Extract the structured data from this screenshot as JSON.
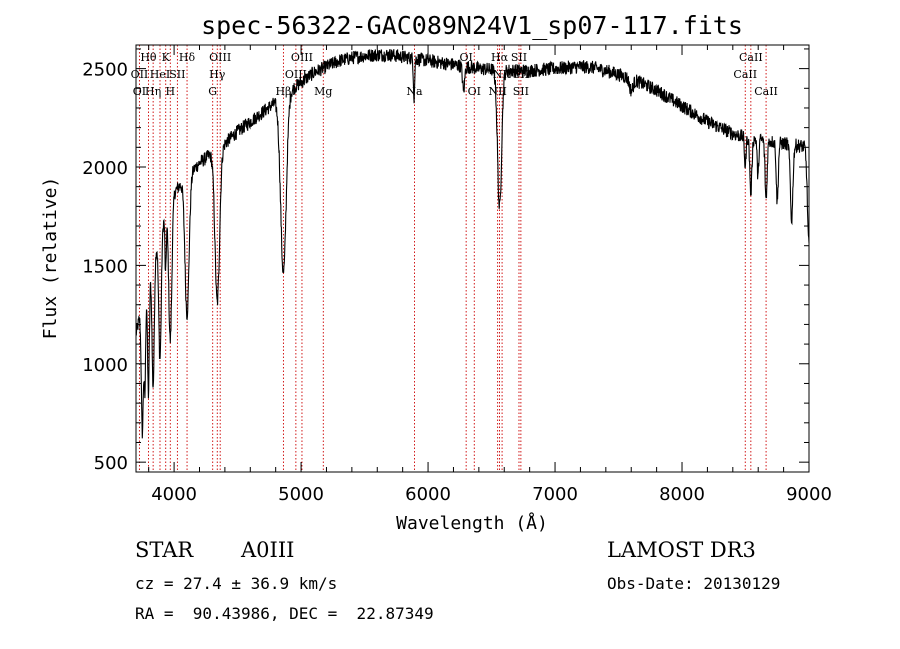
{
  "chart_data": {
    "type": "line",
    "title": "spec-56322-GAC089N24V1_sp07-117.fits",
    "xlabel": "Wavelength (Å)",
    "ylabel": "Flux (relative)",
    "xlim": [
      3700,
      9000
    ],
    "ylim": [
      450,
      2620
    ],
    "xticks": [
      4000,
      5000,
      6000,
      7000,
      8000,
      9000
    ],
    "yticks": [
      500,
      1000,
      1500,
      2000,
      2500
    ],
    "line_color": "#000000",
    "marker_color": "#cc0000",
    "continuum": [
      [
        3700,
        1150
      ],
      [
        3800,
        1450
      ],
      [
        3900,
        1700
      ],
      [
        4000,
        1870
      ],
      [
        4100,
        1950
      ],
      [
        4200,
        2020
      ],
      [
        4300,
        2070
      ],
      [
        4400,
        2120
      ],
      [
        4500,
        2180
      ],
      [
        4600,
        2230
      ],
      [
        4700,
        2280
      ],
      [
        4800,
        2330
      ],
      [
        4900,
        2380
      ],
      [
        5000,
        2430
      ],
      [
        5100,
        2480
      ],
      [
        5200,
        2510
      ],
      [
        5300,
        2540
      ],
      [
        5400,
        2555
      ],
      [
        5500,
        2565
      ],
      [
        5600,
        2570
      ],
      [
        5700,
        2570
      ],
      [
        5800,
        2560
      ],
      [
        5900,
        2550
      ],
      [
        6000,
        2540
      ],
      [
        6100,
        2530
      ],
      [
        6200,
        2520
      ],
      [
        6300,
        2510
      ],
      [
        6400,
        2500
      ],
      [
        6500,
        2495
      ],
      [
        6600,
        2490
      ],
      [
        6700,
        2490
      ],
      [
        6800,
        2490
      ],
      [
        6900,
        2495
      ],
      [
        7000,
        2500
      ],
      [
        7100,
        2505
      ],
      [
        7200,
        2510
      ],
      [
        7300,
        2505
      ],
      [
        7400,
        2490
      ],
      [
        7500,
        2470
      ],
      [
        7600,
        2450
      ],
      [
        7700,
        2420
      ],
      [
        7800,
        2390
      ],
      [
        7900,
        2350
      ],
      [
        8000,
        2310
      ],
      [
        8100,
        2270
      ],
      [
        8200,
        2230
      ],
      [
        8300,
        2200
      ],
      [
        8400,
        2170
      ],
      [
        8500,
        2150
      ],
      [
        8600,
        2140
      ],
      [
        8700,
        2130
      ],
      [
        8800,
        2120
      ],
      [
        8900,
        2110
      ],
      [
        9000,
        2100
      ]
    ],
    "absorption_features": [
      {
        "center": 3750,
        "depth": 650,
        "width": 8
      },
      {
        "center": 3770,
        "depth": 500,
        "width": 6
      },
      {
        "center": 3798,
        "depth": 600,
        "width": 7
      },
      {
        "center": 3835,
        "depth": 650,
        "width": 9
      },
      {
        "center": 3889,
        "depth": 650,
        "width": 10
      },
      {
        "center": 3933,
        "depth": 300,
        "width": 5
      },
      {
        "center": 3970,
        "depth": 700,
        "width": 12
      },
      {
        "center": 4102,
        "depth": 700,
        "width": 16
      },
      {
        "center": 4340,
        "depth": 780,
        "width": 18
      },
      {
        "center": 4861,
        "depth": 900,
        "width": 22
      },
      {
        "center": 5890,
        "depth": 200,
        "width": 5
      },
      {
        "center": 6280,
        "depth": 130,
        "width": 8
      },
      {
        "center": 6563,
        "depth": 700,
        "width": 16
      },
      {
        "center": 7600,
        "depth": 60,
        "width": 15
      },
      {
        "center": 8498,
        "depth": 150,
        "width": 6
      },
      {
        "center": 8542,
        "depth": 280,
        "width": 8
      },
      {
        "center": 8598,
        "depth": 200,
        "width": 6
      },
      {
        "center": 8662,
        "depth": 300,
        "width": 8
      },
      {
        "center": 8750,
        "depth": 300,
        "width": 8
      },
      {
        "center": 8863,
        "depth": 380,
        "width": 10
      },
      {
        "center": 9000,
        "depth": 500,
        "width": 12
      }
    ],
    "noise_amplitude": 35,
    "line_markers": [
      3727,
      3798,
      3835,
      3889,
      3934,
      3970,
      4026,
      4102,
      4304,
      4340,
      4363,
      4861,
      4959,
      5007,
      5175,
      5893,
      6300,
      6364,
      6548,
      6563,
      6583,
      6716,
      6731,
      8498,
      8542,
      8662
    ],
    "line_labels": [
      {
        "text": "Hθ",
        "x": 3798,
        "row": 1
      },
      {
        "text": "K",
        "x": 3934,
        "row": 1
      },
      {
        "text": "Hδ",
        "x": 4102,
        "row": 1
      },
      {
        "text": "OIII",
        "x": 4363,
        "row": 1
      },
      {
        "text": "OIII",
        "x": 5007,
        "row": 1
      },
      {
        "text": "OI",
        "x": 6300,
        "row": 1
      },
      {
        "text": "Hα",
        "x": 6563,
        "row": 1
      },
      {
        "text": "SII",
        "x": 6716,
        "row": 1
      },
      {
        "text": "CaII",
        "x": 8542,
        "row": 1
      },
      {
        "text": "OII",
        "x": 3727,
        "row": 2
      },
      {
        "text": "HeI",
        "x": 3889,
        "row": 2
      },
      {
        "text": "SII",
        "x": 4026,
        "row": 2
      },
      {
        "text": "Hγ",
        "x": 4340,
        "row": 2
      },
      {
        "text": "OIII",
        "x": 4959,
        "row": 2
      },
      {
        "text": "NII",
        "x": 6583,
        "row": 2
      },
      {
        "text": "SII",
        "x": 6731,
        "row": 2
      },
      {
        "text": "CaII",
        "x": 8498,
        "row": 2
      },
      {
        "text": "OI",
        "x": 3727,
        "row": 3
      },
      {
        "text": "Hη",
        "x": 3835,
        "row": 3
      },
      {
        "text": "H",
        "x": 3970,
        "row": 3
      },
      {
        "text": "G",
        "x": 4304,
        "row": 3
      },
      {
        "text": "Hβ",
        "x": 4861,
        "row": 3
      },
      {
        "text": "Mg",
        "x": 5175,
        "row": 3
      },
      {
        "text": "Na",
        "x": 5893,
        "row": 3
      },
      {
        "text": "OI",
        "x": 6364,
        "row": 3
      },
      {
        "text": "NII",
        "x": 6548,
        "row": 3
      },
      {
        "text": "SII",
        "x": 6731,
        "row": 3
      },
      {
        "text": "CaII",
        "x": 8662,
        "row": 3
      }
    ]
  },
  "info": {
    "object_class": "STAR",
    "subclass": "A0III",
    "survey": "LAMOST DR3",
    "redshift_line": "cz = 27.4 ± 36.9 km/s",
    "obs_date_line": "Obs-Date: 20130129",
    "coords_line": "RA =  90.43986, DEC =  22.87349"
  }
}
